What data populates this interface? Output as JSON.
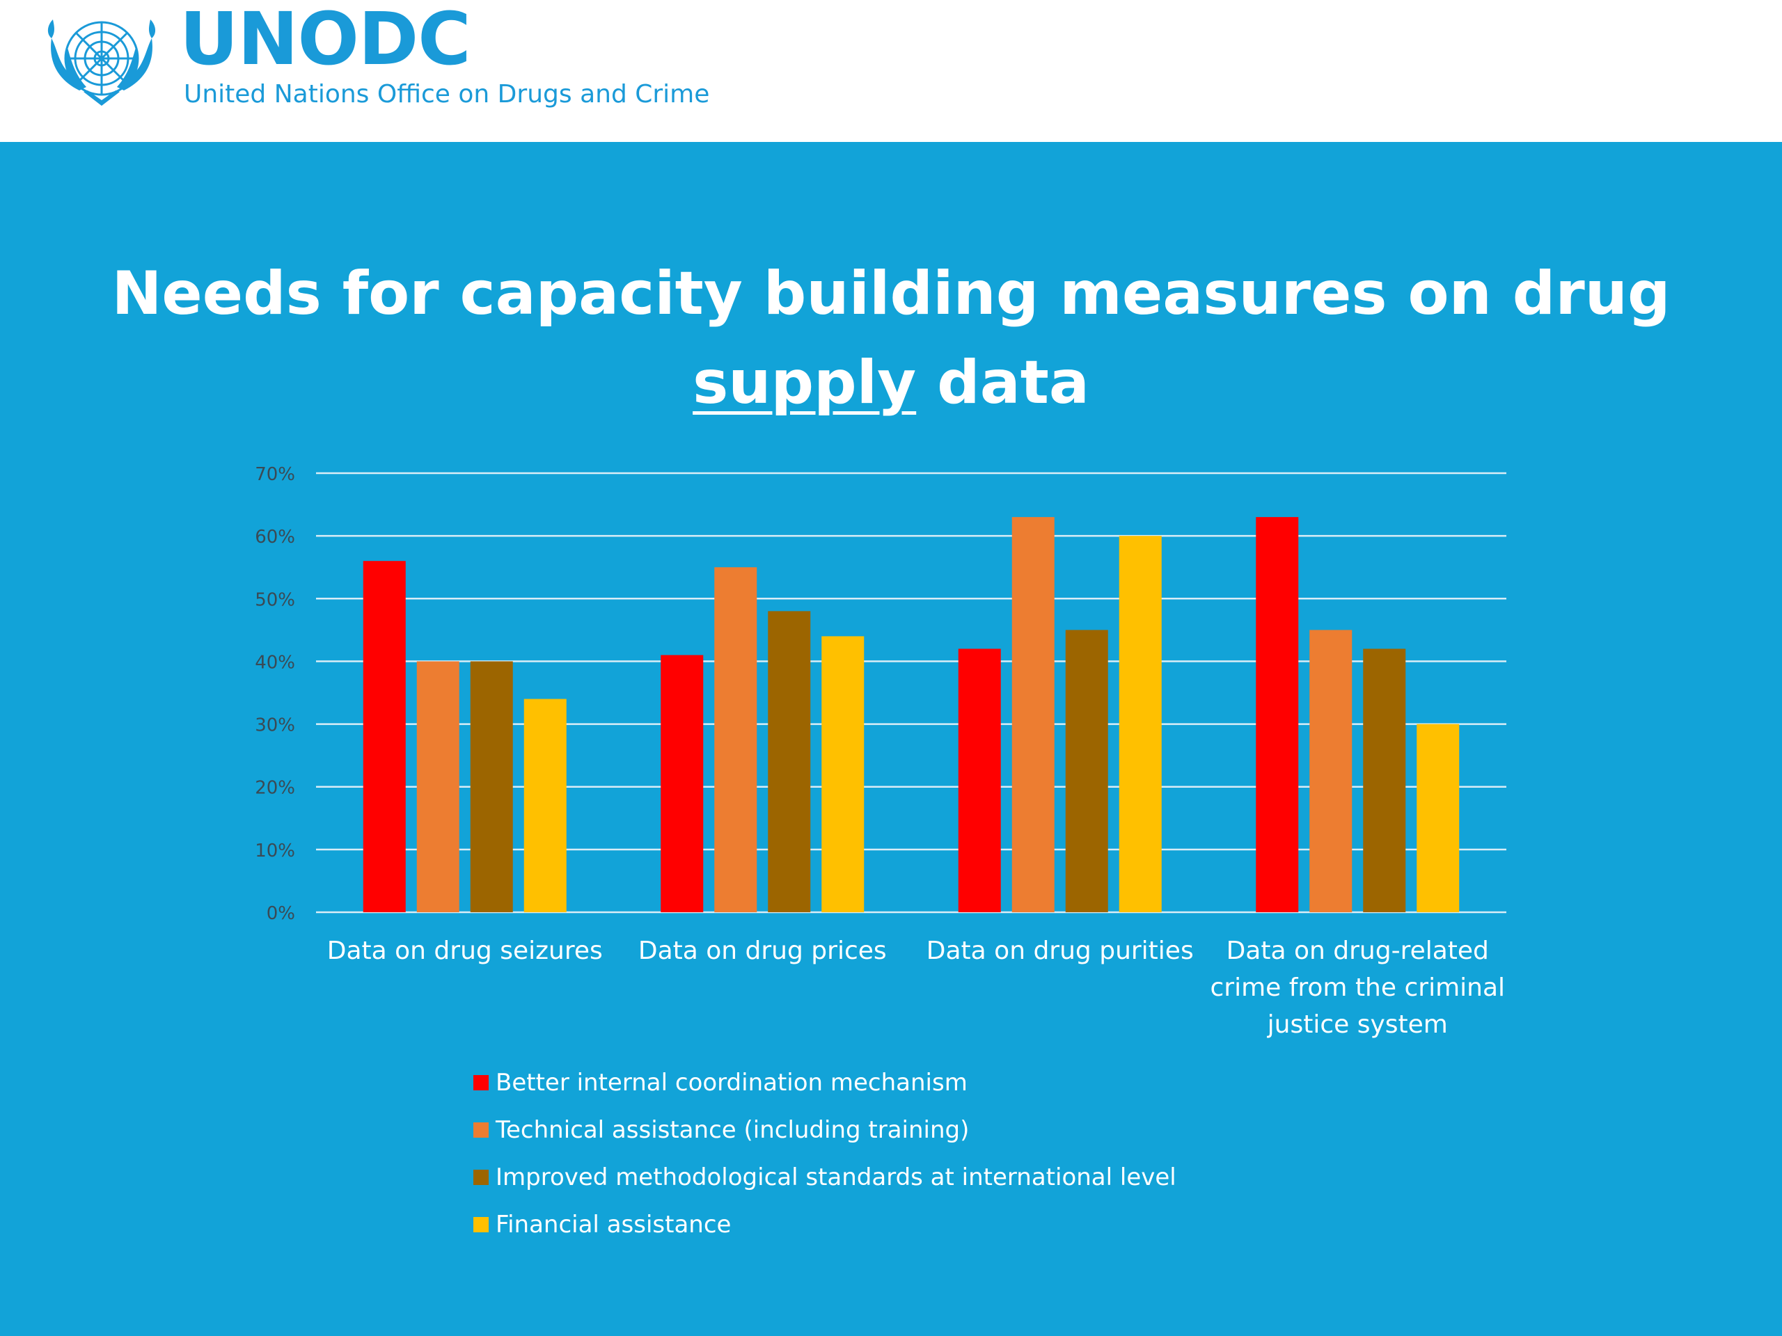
{
  "header": {
    "acronym": "UNODC",
    "organization": "United Nations Office on Drugs and Crime",
    "brand_color": "#1a9ad8",
    "emblem_icon": "un-emblem-icon"
  },
  "slide": {
    "background_color": "#12a3d8",
    "title_line1": "Needs for capacity building measures on drug",
    "title_line2_underlined": "supply",
    "title_line2_rest": " data"
  },
  "chart_data": {
    "type": "bar",
    "title": "",
    "xlabel": "",
    "ylabel": "",
    "ylim": [
      0,
      0.7
    ],
    "y_ticks": [
      "0%",
      "10%",
      "20%",
      "30%",
      "40%",
      "50%",
      "60%",
      "70%"
    ],
    "grid": true,
    "legend_position": "bottom",
    "categories": [
      [
        "Data on drug seizures"
      ],
      [
        "Data on drug prices"
      ],
      [
        "Data on drug purities"
      ],
      [
        "Data on drug-related",
        "crime from the criminal",
        "justice system"
      ]
    ],
    "series": [
      {
        "name": "Better internal coordination mechanism",
        "color": "#ff0000",
        "values": [
          0.56,
          0.41,
          0.42,
          0.63
        ]
      },
      {
        "name": "Technical assistance (including training)",
        "color": "#ed7d31",
        "values": [
          0.4,
          0.55,
          0.63,
          0.45
        ]
      },
      {
        "name": "Improved methodological standards at international level",
        "color": "#9c6500",
        "values": [
          0.4,
          0.48,
          0.45,
          0.42
        ]
      },
      {
        "name": "Financial assistance",
        "color": "#ffc000",
        "values": [
          0.34,
          0.44,
          0.6,
          0.3
        ]
      }
    ]
  }
}
